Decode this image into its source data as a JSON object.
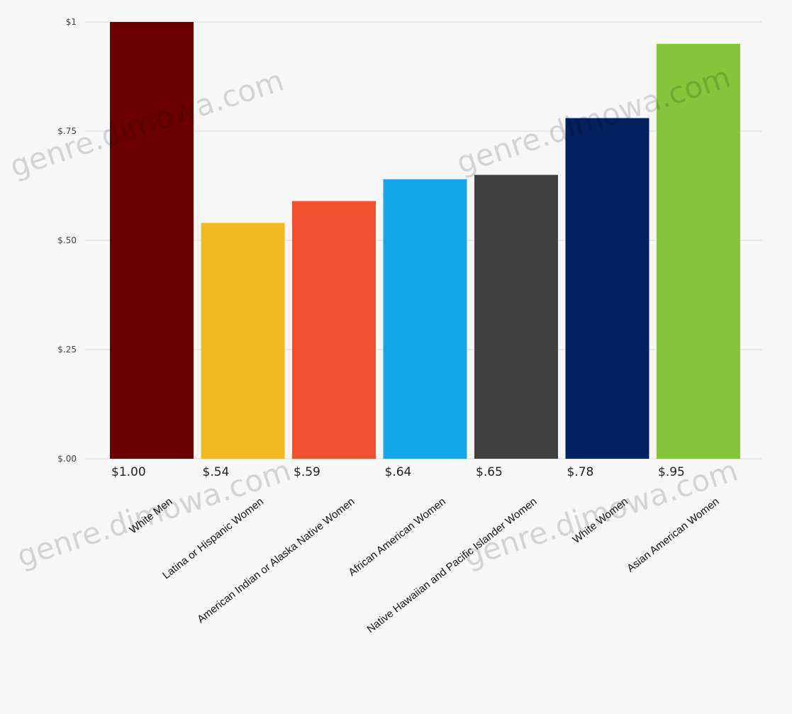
{
  "chart_data": {
    "type": "bar",
    "title": "",
    "xlabel": "",
    "ylabel": "",
    "ylim": [
      0,
      1
    ],
    "grid": true,
    "legend": "none",
    "yticks": [
      "$.00",
      "$.25",
      "$.50",
      "$.75",
      "$1"
    ],
    "ytick_values": [
      0,
      0.25,
      0.5,
      0.75,
      1
    ],
    "categories": [
      "White Men",
      "Latina or Hispanic Women",
      "American Indian or Alaska Native Women",
      "African American Women",
      "Native Hawaiian and Pacific Islander Women",
      "White Women",
      "Asian American Women"
    ],
    "values": [
      1.0,
      0.54,
      0.59,
      0.64,
      0.65,
      0.78,
      0.95
    ],
    "data_labels": [
      "$1.00",
      "$.54",
      "$.59",
      "$.64",
      "$.65",
      "$.78",
      "$.95"
    ],
    "colors": [
      "#6b0000",
      "#f4b821",
      "#f2512f",
      "#13a6e8",
      "#404040",
      "#05205e",
      "#86c43b"
    ]
  },
  "watermark": {
    "text": "genre.dimowa.com"
  }
}
